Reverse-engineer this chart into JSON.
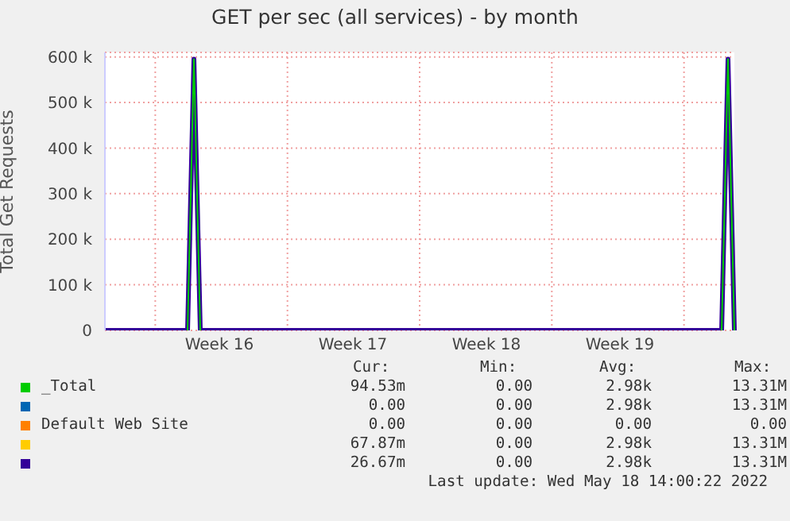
{
  "chart_data": {
    "type": "line",
    "title": "GET per sec (all services) - by month",
    "ylabel": "Total Get Requests",
    "categories": [
      null,
      null,
      null,
      null,
      null,
      null,
      null,
      null,
      null,
      null,
      null,
      null,
      null,
      null,
      null,
      null,
      null,
      null,
      "Week 16",
      null,
      null,
      null,
      null,
      null,
      null,
      null,
      null,
      null,
      null,
      null,
      null,
      null,
      null,
      null,
      null,
      null,
      null,
      null,
      null,
      "Week 17",
      null,
      null,
      null,
      null,
      null,
      null,
      null,
      null,
      null,
      null,
      null,
      null,
      null,
      null,
      null,
      null,
      null,
      null,
      null,
      null,
      "Week 18",
      null,
      null,
      null,
      null,
      null,
      null,
      null,
      null,
      null,
      null,
      null,
      null,
      null,
      null,
      null,
      null,
      null,
      null,
      null,
      null,
      "Week 19",
      null,
      null,
      null,
      null,
      null,
      null,
      null,
      null,
      null,
      null,
      null,
      null,
      null,
      null,
      null,
      null,
      null,
      null
    ],
    "ylim": [
      0,
      610000
    ],
    "yticks": [
      0,
      {
        "value": 100000,
        "label": "100 k"
      },
      {
        "value": 200000,
        "label": "200 k"
      },
      {
        "value": 300000,
        "label": "300 k"
      },
      {
        "value": 400000,
        "label": "400 k"
      },
      {
        "value": 500000,
        "label": "500 k"
      },
      {
        "value": 600000,
        "label": "600 k"
      }
    ],
    "grid": true,
    "legend": "bottom",
    "series": [
      {
        "name": "_Total",
        "color": "#00cc00",
        "values": [
          null,
          null,
          null,
          null,
          null,
          null,
          null,
          null,
          null,
          null,
          null,
          null,
          null,
          0,
          595000,
          0,
          null,
          null,
          null,
          null,
          null,
          null,
          null,
          null,
          null,
          null,
          null,
          null,
          null,
          null,
          null,
          null,
          null,
          null,
          null,
          null,
          null,
          null,
          null,
          null,
          null,
          null,
          null,
          null,
          null,
          null,
          null,
          null,
          null,
          null,
          null,
          null,
          null,
          null,
          null,
          null,
          null,
          null,
          null,
          null,
          null,
          null,
          null,
          null,
          null,
          null,
          null,
          null,
          null,
          null,
          null,
          null,
          null,
          null,
          null,
          null,
          null,
          null,
          null,
          null,
          null,
          null,
          null,
          null,
          null,
          null,
          null,
          null,
          null,
          null,
          null,
          null,
          null,
          null,
          null,
          null,
          null,
          0,
          595000,
          0
        ]
      },
      {
        "color": "#0066b3",
        "values": [
          null,
          null,
          null,
          null,
          null,
          null,
          null,
          null,
          null,
          null,
          null,
          null,
          null,
          null,
          null,
          null,
          null,
          null,
          null,
          null,
          null,
          null,
          null,
          null,
          null,
          null,
          null,
          null,
          null,
          null,
          null,
          null,
          null,
          null,
          null,
          null,
          null,
          null,
          null,
          null,
          null,
          null,
          null,
          null,
          null,
          null,
          null,
          null,
          null,
          null,
          null,
          null,
          null,
          null,
          null,
          null,
          null,
          null,
          null,
          null,
          null,
          null,
          null,
          null,
          null,
          null,
          null,
          null,
          null,
          null,
          null,
          null,
          null,
          null,
          null,
          null,
          null,
          null,
          null,
          null,
          null,
          null,
          null,
          null,
          null,
          null,
          null,
          null,
          null,
          null,
          null,
          null,
          null,
          null,
          null,
          null,
          null,
          null,
          null,
          null
        ]
      },
      {
        "name": "Default Web Site",
        "color": "#ff8000",
        "values": [
          null,
          null,
          null,
          null,
          null,
          null,
          null,
          null,
          null,
          null,
          null,
          null,
          null,
          null,
          null,
          null,
          null,
          null,
          null,
          null,
          null,
          null,
          null,
          null,
          null,
          null,
          null,
          null,
          null,
          null,
          null,
          null,
          null,
          null,
          null,
          null,
          null,
          null,
          null,
          null,
          null,
          null,
          null,
          null,
          null,
          null,
          null,
          null,
          null,
          null,
          null,
          null,
          null,
          null,
          null,
          null,
          null,
          null,
          null,
          null,
          null,
          null,
          null,
          null,
          null,
          null,
          null,
          null,
          null,
          null,
          null,
          null,
          null,
          null,
          null,
          null,
          null,
          null,
          null,
          null,
          null,
          null,
          null,
          null,
          null,
          null,
          null,
          null,
          null,
          null,
          null,
          null,
          null,
          null,
          null,
          null,
          null,
          null,
          null,
          null
        ]
      },
      {
        "color": "#ffcc00",
        "values": [
          null,
          null,
          null,
          null,
          null,
          null,
          null,
          null,
          null,
          null,
          null,
          null,
          null,
          null,
          null,
          null,
          null,
          null,
          null,
          null,
          null,
          null,
          null,
          null,
          null,
          null,
          null,
          null,
          null,
          null,
          null,
          null,
          null,
          null,
          null,
          null,
          null,
          null,
          null,
          null,
          null,
          null,
          null,
          null,
          null,
          null,
          null,
          null,
          null,
          null,
          null,
          null,
          null,
          null,
          null,
          null,
          null,
          null,
          null,
          null,
          null,
          null,
          null,
          null,
          null,
          null,
          null,
          null,
          null,
          null,
          null,
          null,
          null,
          null,
          null,
          null,
          null,
          null,
          null,
          null,
          null,
          null,
          null,
          null,
          null,
          null,
          null,
          null,
          null,
          null,
          null,
          null,
          null,
          null,
          null,
          null,
          null,
          null,
          null,
          null
        ]
      },
      {
        "color": "#330099",
        "values": [
          0,
          0,
          0,
          0,
          0,
          0,
          0,
          0,
          0,
          0,
          0,
          0,
          0,
          0,
          595000,
          0,
          0,
          0,
          0,
          0,
          0,
          0,
          0,
          0,
          0,
          0,
          0,
          0,
          0,
          0,
          0,
          0,
          0,
          0,
          0,
          0,
          0,
          0,
          0,
          0,
          0,
          0,
          0,
          0,
          0,
          0,
          0,
          0,
          0,
          0,
          0,
          0,
          0,
          0,
          0,
          0,
          0,
          0,
          0,
          0,
          0,
          0,
          0,
          0,
          0,
          0,
          0,
          0,
          0,
          0,
          0,
          0,
          0,
          0,
          0,
          0,
          0,
          0,
          0,
          0,
          0,
          0,
          0,
          0,
          0,
          0,
          0,
          0,
          0,
          0,
          0,
          0,
          0,
          0,
          0,
          0,
          0,
          0,
          595000,
          0
        ]
      }
    ],
    "annotations": [
      "Cur:",
      "Min:",
      "Avg:",
      "Max:",
      "94.53m",
      "0.00",
      "2.98k",
      "13.31M",
      "0.00",
      "0.00",
      "2.98k",
      "13.31M",
      "0.00",
      "0.00",
      "0.00",
      "0.00",
      "67.87m",
      "0.00",
      "2.98k",
      "13.31M",
      "26.67m",
      "0.00",
      "2.98k",
      "13.31M",
      "Last update: Wed May 18 14:00:22 2022"
    ]
  }
}
